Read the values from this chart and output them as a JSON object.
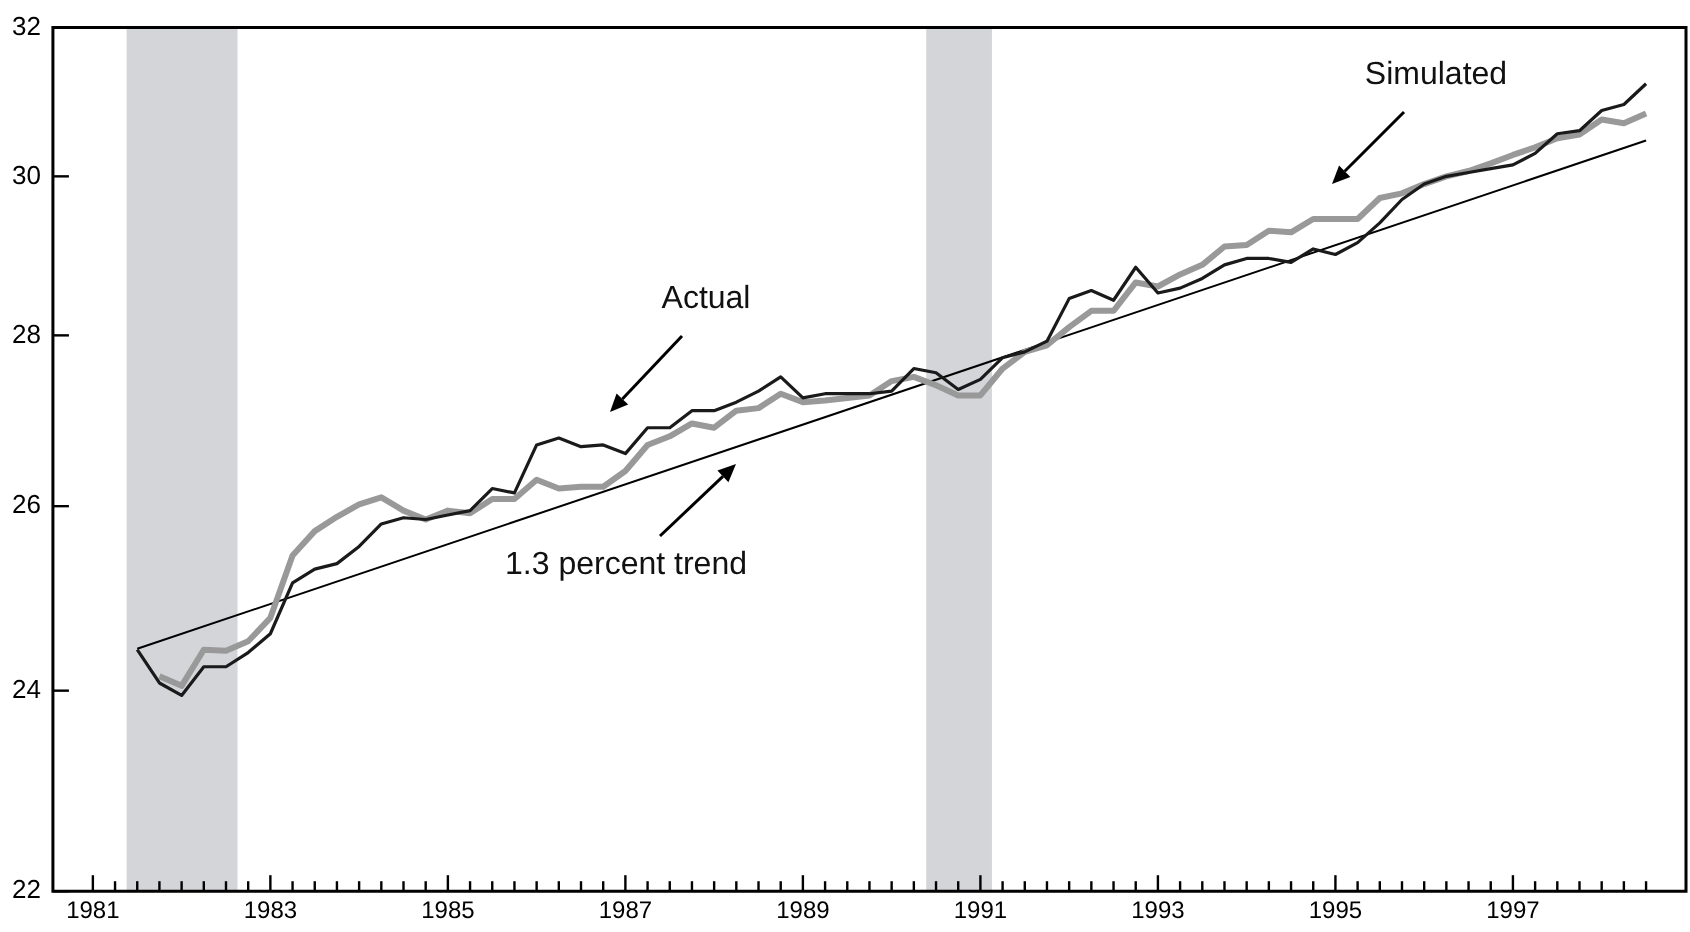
{
  "chart_data": {
    "type": "line",
    "log": "y",
    "grid": false,
    "marker": "none",
    "line_style": "solid",
    "xlim": [
      1980.55,
      1998.95
    ],
    "ylim": [
      22,
      32
    ],
    "yticks": [
      22,
      24,
      26,
      28,
      30,
      32
    ],
    "xticks": [
      1981,
      {
        "value": 1981.25,
        "label": null
      },
      {
        "value": 1981.5,
        "label": null
      },
      {
        "value": 1981.75,
        "label": null
      },
      {
        "value": 1982,
        "label": null
      },
      {
        "value": 1982.25,
        "label": null
      },
      {
        "value": 1982.5,
        "label": null
      },
      {
        "value": 1982.75,
        "label": null
      },
      1983,
      {
        "value": 1983.25,
        "label": null
      },
      {
        "value": 1983.5,
        "label": null
      },
      {
        "value": 1983.75,
        "label": null
      },
      {
        "value": 1984,
        "label": null
      },
      {
        "value": 1984.25,
        "label": null
      },
      {
        "value": 1984.5,
        "label": null
      },
      {
        "value": 1984.75,
        "label": null
      },
      1985,
      {
        "value": 1985.25,
        "label": null
      },
      {
        "value": 1985.5,
        "label": null
      },
      {
        "value": 1985.75,
        "label": null
      },
      {
        "value": 1986,
        "label": null
      },
      {
        "value": 1986.25,
        "label": null
      },
      {
        "value": 1986.5,
        "label": null
      },
      {
        "value": 1986.75,
        "label": null
      },
      1987,
      {
        "value": 1987.25,
        "label": null
      },
      {
        "value": 1987.5,
        "label": null
      },
      {
        "value": 1987.75,
        "label": null
      },
      {
        "value": 1988,
        "label": null
      },
      {
        "value": 1988.25,
        "label": null
      },
      {
        "value": 1988.5,
        "label": null
      },
      {
        "value": 1988.75,
        "label": null
      },
      1989,
      {
        "value": 1989.25,
        "label": null
      },
      {
        "value": 1989.5,
        "label": null
      },
      {
        "value": 1989.75,
        "label": null
      },
      {
        "value": 1990,
        "label": null
      },
      {
        "value": 1990.25,
        "label": null
      },
      {
        "value": 1990.5,
        "label": null
      },
      {
        "value": 1990.75,
        "label": null
      },
      1991,
      {
        "value": 1991.25,
        "label": null
      },
      {
        "value": 1991.5,
        "label": null
      },
      {
        "value": 1991.75,
        "label": null
      },
      {
        "value": 1992,
        "label": null
      },
      {
        "value": 1992.25,
        "label": null
      },
      {
        "value": 1992.5,
        "label": null
      },
      {
        "value": 1992.75,
        "label": null
      },
      1993,
      {
        "value": 1993.25,
        "label": null
      },
      {
        "value": 1993.5,
        "label": null
      },
      {
        "value": 1993.75,
        "label": null
      },
      {
        "value": 1994,
        "label": null
      },
      {
        "value": 1994.25,
        "label": null
      },
      {
        "value": 1994.5,
        "label": null
      },
      {
        "value": 1994.75,
        "label": null
      },
      1995,
      {
        "value": 1995.25,
        "label": null
      },
      {
        "value": 1995.5,
        "label": null
      },
      {
        "value": 1995.75,
        "label": null
      },
      {
        "value": 1996,
        "label": null
      },
      {
        "value": 1996.25,
        "label": null
      },
      {
        "value": 1996.5,
        "label": null
      },
      {
        "value": 1996.75,
        "label": null
      },
      1997,
      {
        "value": 1997.25,
        "label": null
      },
      {
        "value": 1997.5,
        "label": null
      },
      {
        "value": 1997.75,
        "label": null
      },
      {
        "value": 1998,
        "label": null
      },
      {
        "value": 1998.25,
        "label": null
      },
      {
        "value": 1998.5,
        "label": null
      }
    ],
    "x": [
      1981.5,
      1981.75,
      1982,
      1982.25,
      1982.5,
      1982.75,
      1983,
      1983.25,
      1983.5,
      1983.75,
      1984,
      1984.25,
      1984.5,
      1984.75,
      1985,
      1985.25,
      1985.5,
      1985.75,
      1986,
      1986.25,
      1986.5,
      1986.75,
      1987,
      1987.25,
      1987.5,
      1987.75,
      1988,
      1988.25,
      1988.5,
      1988.75,
      1989,
      1989.25,
      1989.5,
      1989.75,
      1990,
      1990.25,
      1990.5,
      1990.75,
      1991,
      1991.25,
      1991.5,
      1991.75,
      1992,
      1992.25,
      1992.5,
      1992.75,
      1993,
      1993.25,
      1993.5,
      1993.75,
      1994,
      1994.25,
      1994.5,
      1994.75,
      1995,
      1995.25,
      1995.5,
      1995.75,
      1996,
      1996.25,
      1996.5,
      1996.75,
      1997,
      1997.25,
      1997.5,
      1997.75,
      1998,
      1998.25,
      1998.5
    ],
    "series": [
      {
        "name": "Actual",
        "color": "#1a1a1a",
        "values": [
          24.43,
          24.08,
          23.95,
          24.25,
          24.25,
          24.4,
          24.6,
          25.15,
          25.3,
          25.36,
          25.55,
          25.8,
          25.87,
          25.85,
          25.9,
          25.95,
          26.2,
          26.15,
          26.7,
          26.78,
          26.68,
          26.7,
          26.6,
          26.9,
          26.9,
          27.1,
          27.1,
          27.2,
          27.33,
          27.5,
          27.25,
          27.3,
          27.3,
          27.3,
          27.33,
          27.6,
          27.55,
          27.35,
          27.47,
          27.73,
          27.8,
          27.93,
          28.45,
          28.55,
          28.43,
          28.84,
          28.52,
          28.58,
          28.7,
          28.87,
          28.95,
          28.95,
          28.9,
          29.07,
          29.0,
          29.15,
          29.4,
          29.7,
          29.9,
          30.0,
          30.05,
          30.1,
          30.15,
          30.3,
          30.56,
          30.6,
          30.87,
          30.95,
          31.23
        ]
      },
      {
        "name": "Simulated",
        "color": "#999999",
        "x": [
          1981.75,
          1982,
          1982.25,
          1982.5,
          1982.75,
          1983,
          1983.25,
          1983.5,
          1983.75,
          1984,
          1984.25,
          1984.5,
          1984.75,
          1985,
          1985.25,
          1985.5,
          1985.75,
          1986,
          1986.25,
          1986.5,
          1986.75,
          1987,
          1987.25,
          1987.5,
          1987.75,
          1988,
          1988.25,
          1988.5,
          1988.75,
          1989,
          1989.25,
          1989.5,
          1989.75,
          1990,
          1990.25,
          1990.5,
          1990.75,
          1991,
          1991.25,
          1991.5,
          1991.75,
          1992,
          1992.25,
          1992.5,
          1992.75,
          1993,
          1993.25,
          1993.5,
          1993.75,
          1994,
          1994.25,
          1994.5,
          1994.75,
          1995,
          1995.25,
          1995.5,
          1995.75,
          1996,
          1996.25,
          1996.5,
          1996.75,
          1997,
          1997.25,
          1997.5,
          1997.75,
          1998,
          1998.25,
          1998.5
        ],
        "values": [
          24.15,
          24.05,
          24.43,
          24.42,
          24.52,
          24.77,
          25.45,
          25.72,
          25.88,
          26.02,
          26.1,
          25.95,
          25.85,
          25.95,
          25.92,
          26.08,
          26.08,
          26.3,
          26.2,
          26.22,
          26.22,
          26.4,
          26.7,
          26.8,
          26.95,
          26.9,
          27.1,
          27.13,
          27.3,
          27.2,
          27.22,
          27.25,
          27.28,
          27.45,
          27.5,
          27.4,
          27.28,
          27.28,
          27.6,
          27.8,
          27.88,
          28.1,
          28.3,
          28.3,
          28.65,
          28.6,
          28.75,
          28.87,
          29.1,
          29.12,
          29.3,
          29.28,
          29.45,
          29.45,
          29.45,
          29.72,
          29.78,
          29.9,
          30.0,
          30.07,
          30.17,
          30.28,
          30.38,
          30.5,
          30.55,
          30.75,
          30.7,
          30.83
        ]
      },
      {
        "name": "1.3 percent trend",
        "color": "#000000",
        "x": [
          1981.5,
          1998.5
        ],
        "values": [
          24.44,
          30.47
        ]
      }
    ],
    "bands": [
      {
        "axis": "x",
        "from": 1981.38,
        "to": 1982.63,
        "color": "#d4d5d9"
      },
      {
        "axis": "x",
        "from": 1990.39,
        "to": 1991.13,
        "color": "#d4d5d9"
      }
    ]
  }
}
